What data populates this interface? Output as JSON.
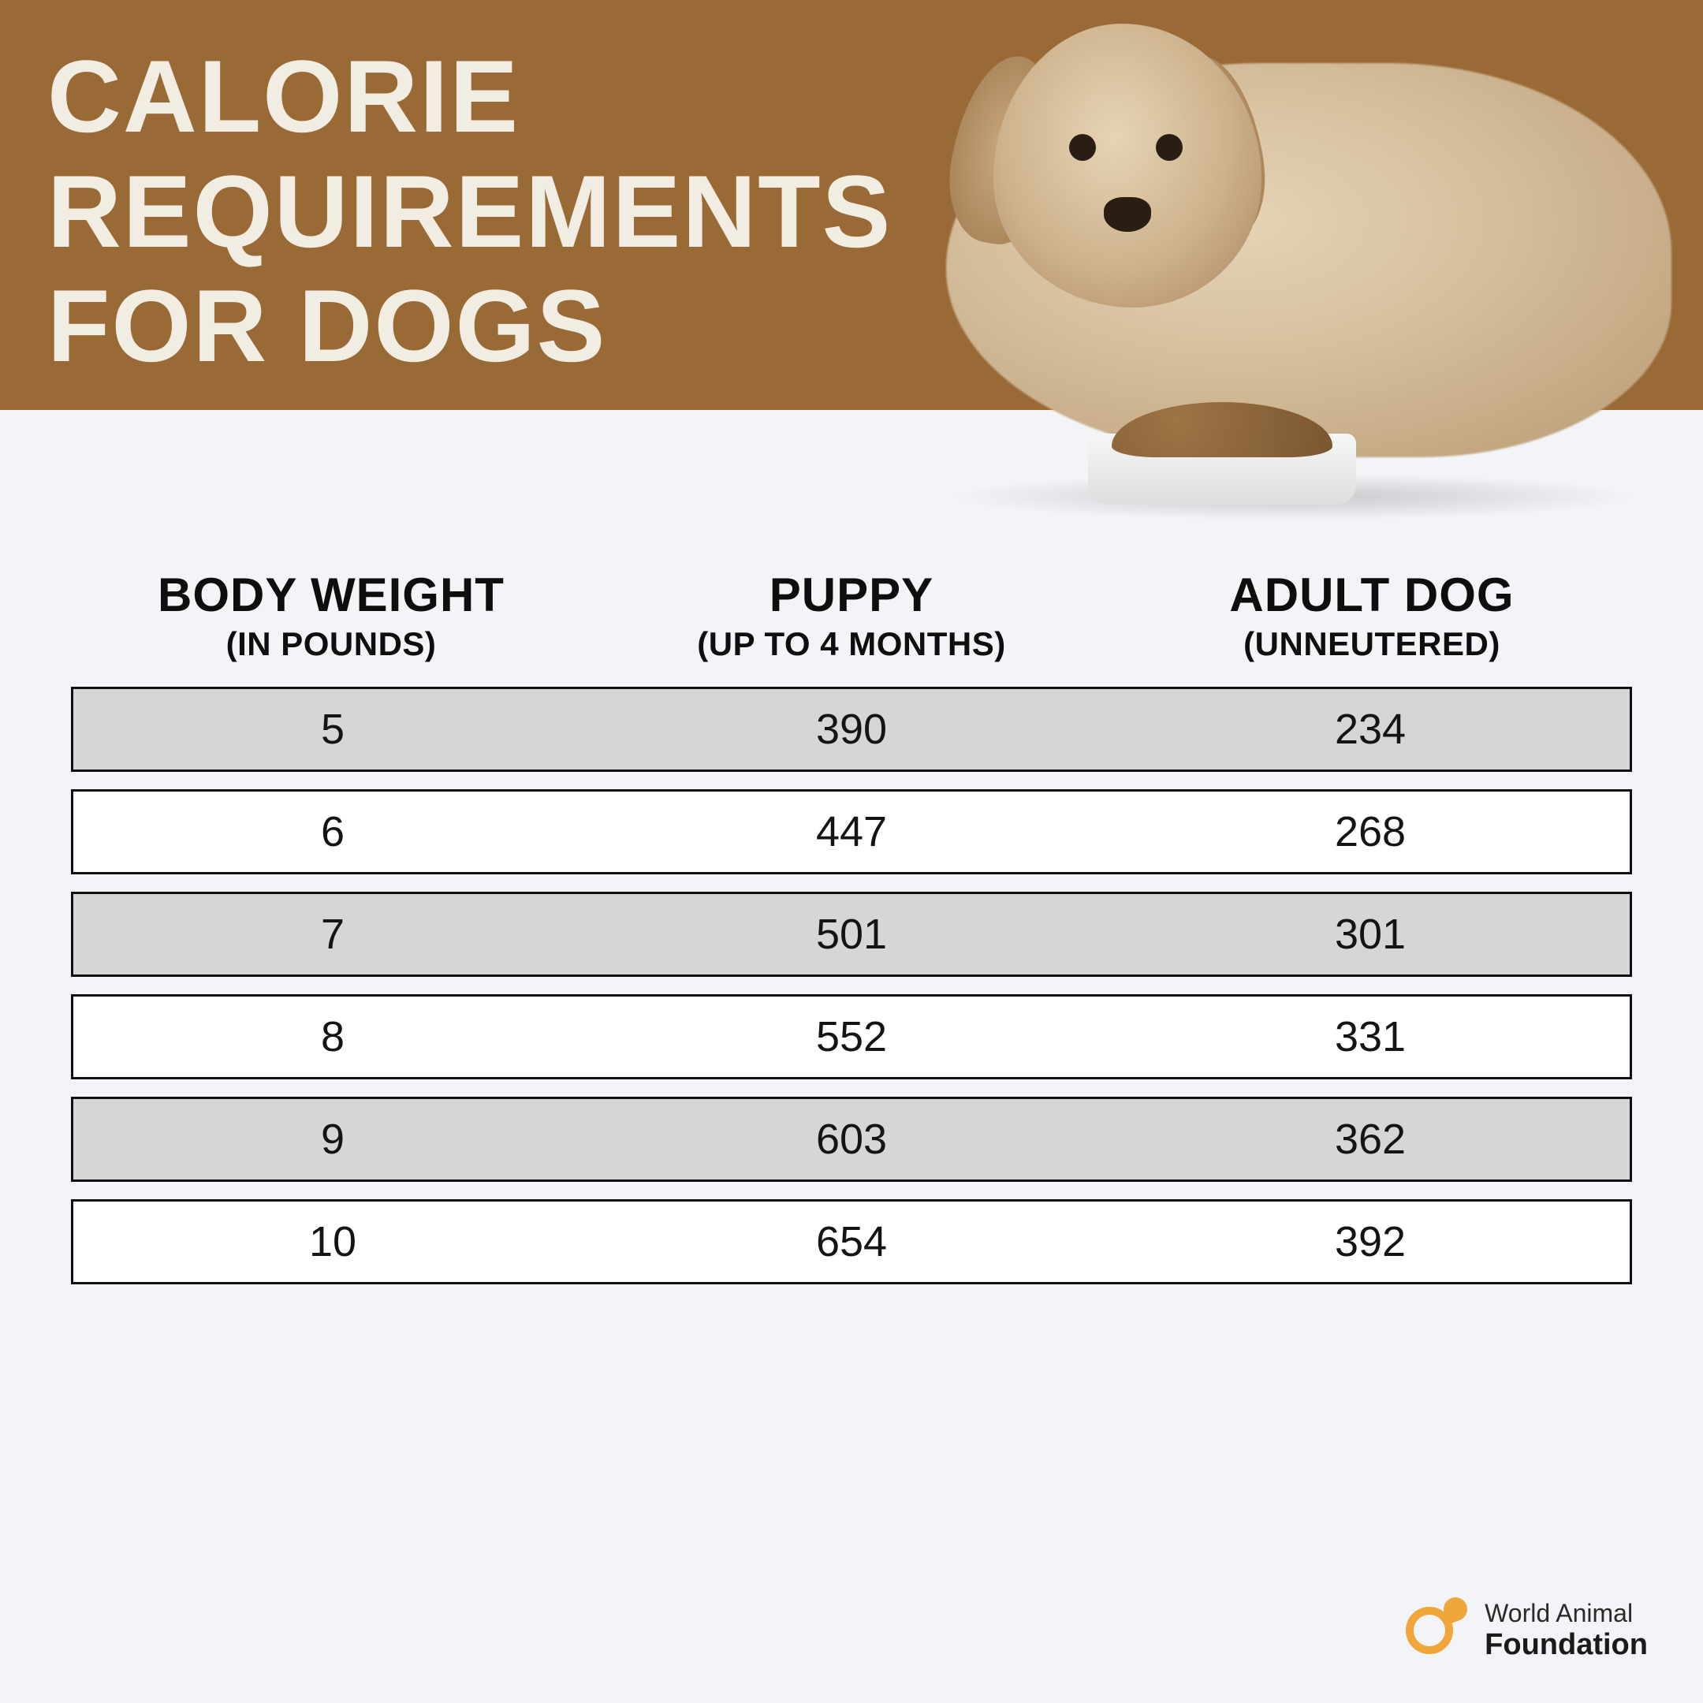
{
  "header": {
    "title_line1": "CALORIE",
    "title_line2": "REQUIREMENTS",
    "title_line3": "FOR DOGS",
    "band_color": "#9a6a36",
    "title_color": "#f2ede3",
    "title_fontsize": 130
  },
  "background_color": "#f3f4f7",
  "table": {
    "type": "table",
    "header_fontsize_main": 60,
    "header_fontsize_sub": 42,
    "cell_fontsize": 54,
    "border_color": "#101010",
    "row_shade_color": "#d6d6d6",
    "row_plain_color": "#ffffff",
    "columns": [
      {
        "main": "BODY WEIGHT",
        "sub": "(IN POUNDS)"
      },
      {
        "main": "PUPPY",
        "sub": "(UP TO 4 MONTHS)"
      },
      {
        "main": "ADULT DOG",
        "sub": "(UNNEUTERED)"
      }
    ],
    "rows": [
      {
        "cells": [
          "5",
          "390",
          "234"
        ],
        "shaded": true
      },
      {
        "cells": [
          "6",
          "447",
          "268"
        ],
        "shaded": false
      },
      {
        "cells": [
          "7",
          "501",
          "301"
        ],
        "shaded": true
      },
      {
        "cells": [
          "8",
          "552",
          "331"
        ],
        "shaded": false
      },
      {
        "cells": [
          "9",
          "603",
          "362"
        ],
        "shaded": true
      },
      {
        "cells": [
          "10",
          "654",
          "392"
        ],
        "shaded": false
      }
    ]
  },
  "footer": {
    "logo_icon_color": "#f0a63a",
    "line1": "World Animal",
    "line2": "Foundation",
    "line1_fontsize": 32,
    "line2_fontsize": 38
  }
}
